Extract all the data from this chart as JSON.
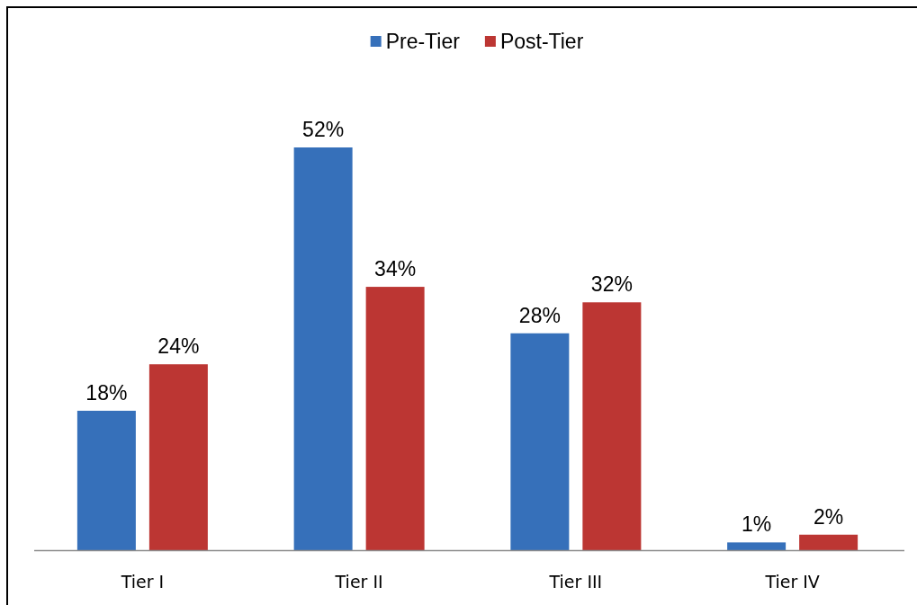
{
  "chart_data": {
    "type": "bar",
    "categories": [
      "Tier I",
      "Tier II",
      "Tier III",
      "Tier IV"
    ],
    "series": [
      {
        "name": "Pre-Tier",
        "color": "#3670ba",
        "values": [
          18,
          52,
          28,
          1
        ],
        "value_labels": [
          "18%",
          "52%",
          "28%",
          "1%"
        ]
      },
      {
        "name": "Post-Tier",
        "color": "#bc3633",
        "values": [
          24,
          34,
          32,
          2
        ],
        "value_labels": [
          "24%",
          "34%",
          "32%",
          "2%"
        ]
      }
    ],
    "legend": "top"
  }
}
